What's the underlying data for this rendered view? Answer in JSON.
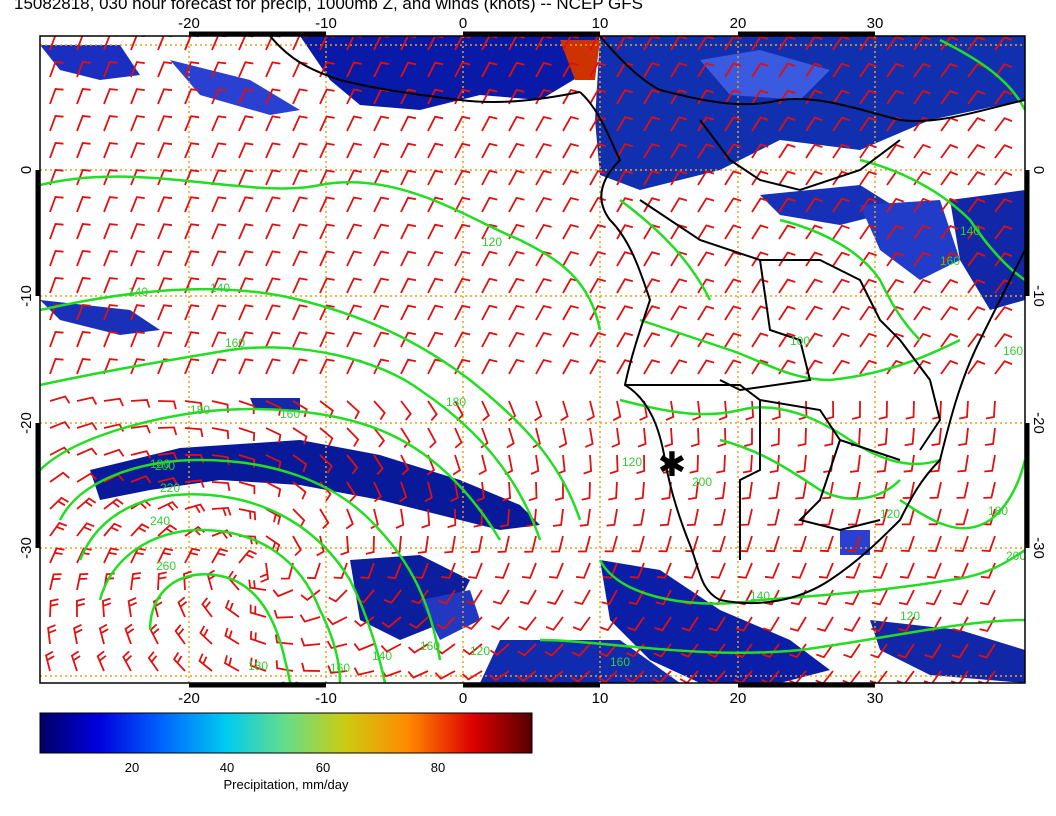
{
  "title": "15082818, 030 hour forecast for precip, 1000mb Z, and winds (knots) -- NCEP GFS",
  "map": {
    "lon_range": [
      -30,
      41
    ],
    "lat_range": [
      -39.5,
      9.5
    ],
    "lon_ticks": [
      "-20",
      "-10",
      "0",
      "10",
      "20",
      "30"
    ],
    "lat_ticks": [
      "0",
      "-10",
      "-20",
      "-30"
    ],
    "grid": "dotted-orange",
    "barb_color": "#e01010",
    "contour_color": "#22dd22",
    "coast_color": "#000000",
    "contour_labels": [
      "120",
      "140",
      "160",
      "180",
      "200",
      "220",
      "240",
      "260",
      "140",
      "160",
      "120",
      "200",
      "180",
      "160",
      "140",
      "120",
      "100",
      "180",
      "200",
      "160",
      "120",
      "160",
      "180",
      "200",
      "140",
      "140",
      "160",
      "180",
      "160",
      "120"
    ],
    "marker": "✱"
  },
  "colorbar": {
    "label": "Precipitation, mm/day",
    "ticks": [
      "20",
      "40",
      "60",
      "80"
    ],
    "range": [
      0,
      100
    ],
    "colors": [
      "#000080",
      "#0000ff",
      "#00aaff",
      "#33dddd",
      "#88dd44",
      "#dddd00",
      "#ff8800",
      "#dd0000",
      "#660000"
    ]
  }
}
